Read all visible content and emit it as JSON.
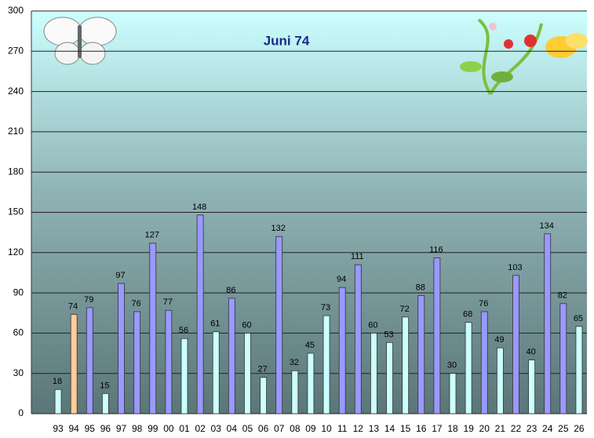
{
  "chart_data": {
    "type": "bar",
    "title": "Juni  74",
    "categories": [
      "93",
      "94",
      "95",
      "96",
      "97",
      "98",
      "99",
      "00",
      "01",
      "02",
      "03",
      "04",
      "05",
      "06",
      "07",
      "08",
      "09",
      "10",
      "11",
      "12",
      "13",
      "14",
      "15",
      "16",
      "17",
      "18",
      "19",
      "20",
      "21",
      "22",
      "23",
      "24",
      "25",
      "26"
    ],
    "values": [
      18,
      74,
      79,
      15,
      97,
      76,
      127,
      77,
      56,
      148,
      61,
      86,
      60,
      27,
      132,
      32,
      45,
      73,
      94,
      111,
      60,
      53,
      72,
      88,
      116,
      30,
      68,
      76,
      49,
      103,
      40,
      134,
      82,
      65
    ],
    "colors": [
      "#ccffff",
      "#ffcc99",
      "#9999ff",
      "#ccffff",
      "#9999ff",
      "#9999ff",
      "#9999ff",
      "#9999ff",
      "#ccffff",
      "#9999ff",
      "#ccffff",
      "#9999ff",
      "#ccffff",
      "#ccffff",
      "#9999ff",
      "#ccffff",
      "#ccffff",
      "#ccffff",
      "#9999ff",
      "#9999ff",
      "#ccffff",
      "#ccffff",
      "#ccffff",
      "#9999ff",
      "#9999ff",
      "#ccffff",
      "#ccffff",
      "#9999ff",
      "#ccffff",
      "#9999ff",
      "#ccffff",
      "#9999ff",
      "#9999ff",
      "#ccffff"
    ],
    "ylim": [
      0,
      300
    ],
    "yticks": [
      0,
      30,
      60,
      90,
      120,
      150,
      180,
      210,
      240,
      270,
      300
    ],
    "grid": true
  }
}
